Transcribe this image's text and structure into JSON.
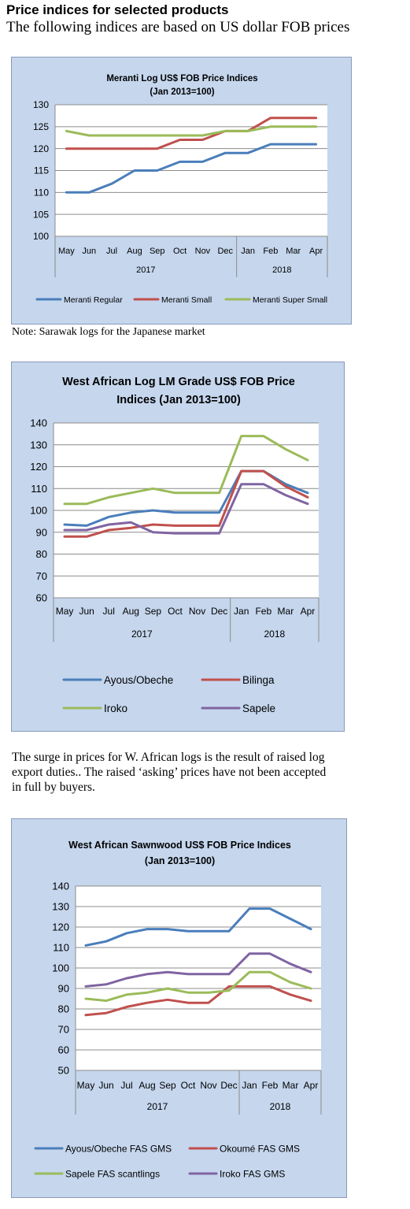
{
  "page": {
    "heading": "Price indices for selected products",
    "subheading": "The following indices are based on US dollar FOB prices",
    "note": "Note: Sarawak logs for the Japanese market",
    "paragraph_lines": [
      "The surge in prices for W. African logs is the result of raised log",
      "export duties.. The raised ‘asking’ prices have not been accepted",
      "in full by buyers."
    ]
  },
  "chart_data": [
    {
      "type": "line",
      "title": [
        "Meranti Log US$ FOB Price Indices",
        "(Jan 2013=100)"
      ],
      "categories": [
        "May",
        "Jun",
        "Jul",
        "Aug",
        "Sep",
        "Oct",
        "Nov",
        "Dec",
        "Jan",
        "Feb",
        "Mar",
        "Apr"
      ],
      "groups": [
        {
          "label": "2017",
          "from": 0,
          "to": 7
        },
        {
          "label": "2018",
          "from": 8,
          "to": 11
        }
      ],
      "ylim": [
        100,
        130
      ],
      "yticks": [
        100,
        105,
        110,
        115,
        120,
        125,
        130
      ],
      "grid": true,
      "legend_position": "bottom",
      "series": [
        {
          "name": "Meranti Regular",
          "color": "#4a7ebb",
          "values": [
            110,
            110,
            112,
            115,
            115,
            117,
            117,
            119,
            119,
            121,
            121,
            121
          ]
        },
        {
          "name": "Meranti Small",
          "color": "#c0504d",
          "values": [
            120,
            120,
            120,
            120,
            120,
            122,
            122,
            124,
            124,
            127,
            127,
            127
          ]
        },
        {
          "name": "Meranti Super Small",
          "color": "#9bbb59",
          "values": [
            124,
            123,
            123,
            123,
            123,
            123,
            123,
            124,
            124,
            125,
            125,
            125
          ]
        }
      ]
    },
    {
      "type": "line",
      "title": [
        "West African Log LM Grade US$ FOB Price",
        "Indices (Jan 2013=100)"
      ],
      "categories": [
        "May",
        "Jun",
        "Jul",
        "Aug",
        "Sep",
        "Oct",
        "Nov",
        "Dec",
        "Jan",
        "Feb",
        "Mar",
        "Apr"
      ],
      "groups": [
        {
          "label": "2017",
          "from": 0,
          "to": 7
        },
        {
          "label": "2018",
          "from": 8,
          "to": 11
        }
      ],
      "ylim": [
        60,
        140
      ],
      "yticks": [
        60,
        70,
        80,
        90,
        100,
        110,
        120,
        130,
        140
      ],
      "grid": true,
      "legend_position": "bottom",
      "series": [
        {
          "name": "Ayous/Obeche",
          "color": "#4a7ebb",
          "values": [
            93.5,
            93,
            97,
            99,
            100,
            99,
            99,
            99,
            118,
            118,
            112,
            108
          ]
        },
        {
          "name": "Bilinga",
          "color": "#c0504d",
          "values": [
            88,
            88,
            91,
            92,
            93.5,
            93,
            93,
            93,
            118,
            118,
            111,
            106
          ]
        },
        {
          "name": "Iroko",
          "color": "#9bbb59",
          "values": [
            103,
            103,
            106,
            108,
            110,
            108,
            108,
            108,
            134,
            134,
            128,
            123
          ]
        },
        {
          "name": "Sapele",
          "color": "#8064a2",
          "values": [
            91,
            91,
            93.5,
            94.5,
            90,
            89.5,
            89.5,
            89.5,
            112,
            112,
            107,
            103
          ]
        }
      ]
    },
    {
      "type": "line",
      "title": [
        "West African Sawnwood US$ FOB Price Indices",
        "(Jan 2013=100)"
      ],
      "categories": [
        "May",
        "Jun",
        "Jul",
        "Aug",
        "Sep",
        "Oct",
        "Nov",
        "Dec",
        "Jan",
        "Feb",
        "Mar",
        "Apr"
      ],
      "groups": [
        {
          "label": "2017",
          "from": 0,
          "to": 7
        },
        {
          "label": "2018",
          "from": 8,
          "to": 11
        }
      ],
      "ylim": [
        50,
        140
      ],
      "yticks": [
        50,
        60,
        70,
        80,
        90,
        100,
        110,
        120,
        130,
        140
      ],
      "grid": true,
      "legend_position": "bottom",
      "series": [
        {
          "name": "Ayous/Obeche FAS GMS",
          "color": "#4a7ebb",
          "values": [
            111,
            113,
            117,
            119,
            119,
            118,
            118,
            118,
            129,
            129,
            124,
            119
          ]
        },
        {
          "name": "Okoumé  FAS GMS",
          "color": "#c0504d",
          "values": [
            77,
            78,
            81,
            83,
            84.5,
            83,
            83,
            91,
            91,
            91,
            87,
            84
          ]
        },
        {
          "name": "Sapele FAS scantlings",
          "color": "#9bbb59",
          "values": [
            85,
            84,
            87,
            88,
            90,
            88,
            88,
            89,
            98,
            98,
            93,
            90
          ]
        },
        {
          "name": "Iroko FAS GMS",
          "color": "#8064a2",
          "values": [
            91,
            92,
            95,
            97,
            98,
            97,
            97,
            97,
            107,
            107,
            102,
            98
          ]
        }
      ]
    }
  ]
}
